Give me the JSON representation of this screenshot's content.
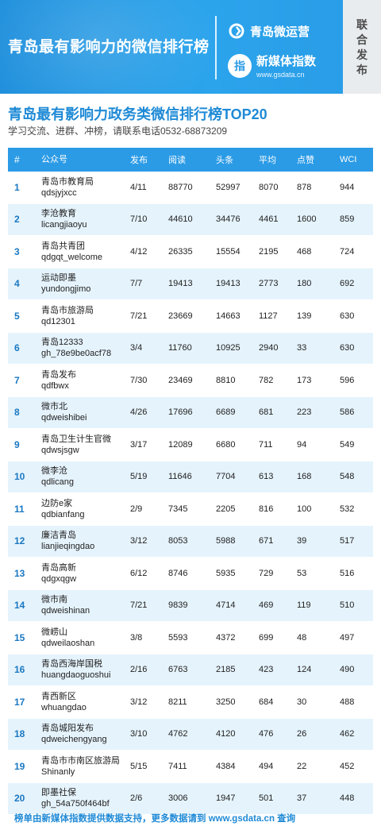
{
  "banner": {
    "title": "青岛最有影响力的微信排行榜",
    "brand1": "青岛微运营",
    "brand2": "新媒体指数",
    "brand2_url": "www.gsdata.cn",
    "logo_char": "指",
    "side_label": "联合发布"
  },
  "heading": "青岛最有影响力政务类微信排行榜TOP20",
  "subline": "学习交流、进群、冲榜，请联系电话0532-68873209",
  "colors": {
    "header_bg": "#2b9be6",
    "accent": "#1f8ad6",
    "row_alt": "#e5f3fc"
  },
  "table": {
    "headers": {
      "rank": "#",
      "name": "公众号",
      "pub": "发布",
      "read": "阅读",
      "top": "头条",
      "avg": "平均",
      "like": "点赞",
      "wci": "WCI"
    },
    "rows": [
      {
        "rank": "1",
        "name": "青岛市教育局",
        "id": "qdsjyjxcc",
        "pub": "4/11",
        "read": "88770",
        "top": "52997",
        "avg": "8070",
        "like": "878",
        "wci": "944"
      },
      {
        "rank": "2",
        "name": "李沧教育",
        "id": "licangjiaoyu",
        "pub": "7/10",
        "read": "44610",
        "top": "34476",
        "avg": "4461",
        "like": "1600",
        "wci": "859"
      },
      {
        "rank": "3",
        "name": "青岛共青团",
        "id": "qdgqt_welcome",
        "pub": "4/12",
        "read": "26335",
        "top": "15554",
        "avg": "2195",
        "like": "468",
        "wci": "724"
      },
      {
        "rank": "4",
        "name": "运动即墨",
        "id": "yundongjimo",
        "pub": "7/7",
        "read": "19413",
        "top": "19413",
        "avg": "2773",
        "like": "180",
        "wci": "692"
      },
      {
        "rank": "5",
        "name": "青岛市旅游局",
        "id": "qd12301",
        "pub": "7/21",
        "read": "23669",
        "top": "14663",
        "avg": "1127",
        "like": "139",
        "wci": "630"
      },
      {
        "rank": "6",
        "name": "青岛12333",
        "id": "gh_78e9be0acf78",
        "pub": "3/4",
        "read": "11760",
        "top": "10925",
        "avg": "2940",
        "like": "33",
        "wci": "630"
      },
      {
        "rank": "7",
        "name": "青岛发布",
        "id": "qdfbwx",
        "pub": "7/30",
        "read": "23469",
        "top": "8810",
        "avg": "782",
        "like": "173",
        "wci": "596"
      },
      {
        "rank": "8",
        "name": "微市北",
        "id": "qdweishibei",
        "pub": "4/26",
        "read": "17696",
        "top": "6689",
        "avg": "681",
        "like": "223",
        "wci": "586"
      },
      {
        "rank": "9",
        "name": "青岛卫生计生官微",
        "id": "qdwsjsgw",
        "pub": "3/17",
        "read": "12089",
        "top": "6680",
        "avg": "711",
        "like": "94",
        "wci": "549"
      },
      {
        "rank": "10",
        "name": "微李沧",
        "id": "qdlicang",
        "pub": "5/19",
        "read": "11646",
        "top": "7704",
        "avg": "613",
        "like": "168",
        "wci": "548"
      },
      {
        "rank": "11",
        "name": "边防e家",
        "id": "qdbianfang",
        "pub": "2/9",
        "read": "7345",
        "top": "2205",
        "avg": "816",
        "like": "100",
        "wci": "532"
      },
      {
        "rank": "12",
        "name": "廉洁青岛",
        "id": "lianjieqingdao",
        "pub": "3/12",
        "read": "8053",
        "top": "5988",
        "avg": "671",
        "like": "39",
        "wci": "517"
      },
      {
        "rank": "13",
        "name": "青岛高新",
        "id": "qdgxqgw",
        "pub": "6/12",
        "read": "8746",
        "top": "5935",
        "avg": "729",
        "like": "53",
        "wci": "516"
      },
      {
        "rank": "14",
        "name": "微市南",
        "id": "qdweishinan",
        "pub": "7/21",
        "read": "9839",
        "top": "4714",
        "avg": "469",
        "like": "119",
        "wci": "510"
      },
      {
        "rank": "15",
        "name": "微崂山",
        "id": "qdweilaoshan",
        "pub": "3/8",
        "read": "5593",
        "top": "4372",
        "avg": "699",
        "like": "48",
        "wci": "497"
      },
      {
        "rank": "16",
        "name": "青岛西海岸国税",
        "id": "huangdaoguoshui",
        "pub": "2/16",
        "read": "6763",
        "top": "2185",
        "avg": "423",
        "like": "124",
        "wci": "490"
      },
      {
        "rank": "17",
        "name": "青西新区",
        "id": "whuangdao",
        "pub": "3/12",
        "read": "8211",
        "top": "3250",
        "avg": "684",
        "like": "30",
        "wci": "488"
      },
      {
        "rank": "18",
        "name": "青岛城阳发布",
        "id": "qdweichengyang",
        "pub": "3/10",
        "read": "4762",
        "top": "4120",
        "avg": "476",
        "like": "26",
        "wci": "462"
      },
      {
        "rank": "19",
        "name": "青岛市市南区旅游局",
        "id": "Shinanly",
        "pub": "5/15",
        "read": "7411",
        "top": "4384",
        "avg": "494",
        "like": "22",
        "wci": "452"
      },
      {
        "rank": "20",
        "name": "即墨社保",
        "id": "gh_54a750f464bf",
        "pub": "2/6",
        "read": "3006",
        "top": "1947",
        "avg": "501",
        "like": "37",
        "wci": "448"
      }
    ]
  },
  "footer": "榜单由新媒体指数提供数据支持，更多数据请到 www.gsdata.cn 查询"
}
